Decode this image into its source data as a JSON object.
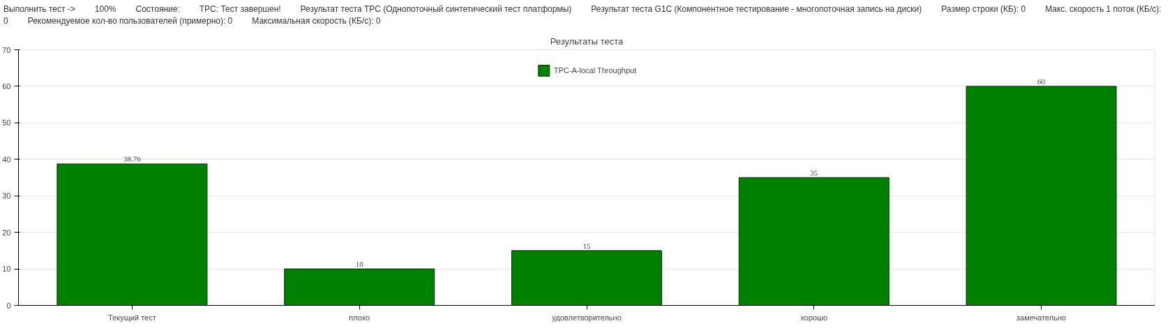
{
  "chart_data": {
    "type": "bar",
    "title": "Результаты теста",
    "categories": [
      "Текущий тест",
      "плохо",
      "удовлетворительно",
      "хорошо",
      "замечательно"
    ],
    "series": [
      {
        "name": "TPC-A-local Throughput",
        "color": "#008000",
        "values": [
          38.76,
          10,
          15,
          35,
          60
        ]
      }
    ],
    "ylim": [
      0,
      70
    ],
    "yticks": [
      0,
      10,
      20,
      30,
      40,
      50,
      60,
      70
    ],
    "grid": "y",
    "legend": "top",
    "data_labels": true,
    "annotations": [
      "Выполнить тест ->",
      "100%",
      "Состояние:",
      "TPC: Тест завершен!",
      "Результат теста TPC (Однопоточный синтетический тест платформы)",
      "Результат теста G1C (Компонентное тестирование - многопоточная запись на диски)",
      "Размер строки (КБ): 0",
      "Макс. скорость 1 поток (КБ/с): 0",
      "Рекомендуемое кол-во пользователей (примерно): 0",
      "Максимальная скорость (КБ/с): 0"
    ]
  }
}
